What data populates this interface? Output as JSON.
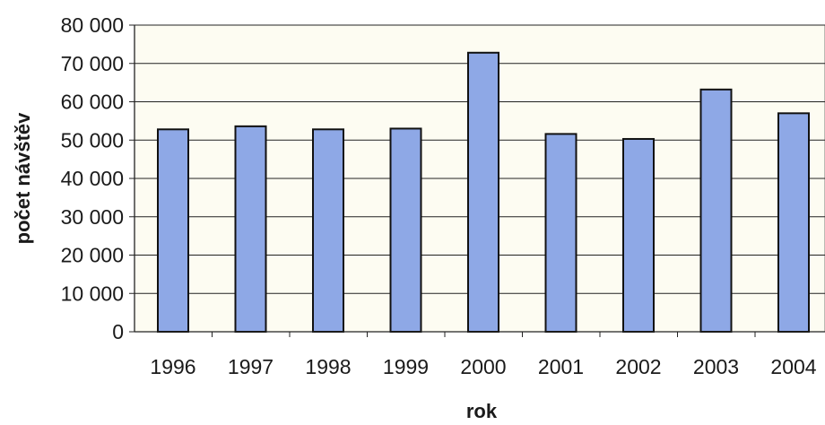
{
  "chart_data": {
    "type": "bar",
    "categories": [
      "1996",
      "1997",
      "1998",
      "1999",
      "2000",
      "2001",
      "2002",
      "2003",
      "2004"
    ],
    "values": [
      52800,
      53600,
      52800,
      53000,
      72800,
      51600,
      50300,
      63200,
      57000
    ],
    "xlabel": "rok",
    "ylabel": "počet návštěv",
    "ylim": [
      0,
      80000
    ],
    "yticks": [
      0,
      10000,
      20000,
      30000,
      40000,
      50000,
      60000,
      70000,
      80000
    ],
    "ytick_labels": [
      "0",
      "10 000",
      "20 000",
      "30 000",
      "40 000",
      "50 000",
      "60 000",
      "70 000",
      "80 000"
    ],
    "grid": true,
    "legend": "none",
    "colors": {
      "bar_fill": "#8EA8E6",
      "bar_stroke": "#111111",
      "plot_background": "#FDFCF2",
      "gridline": "#222222"
    }
  }
}
